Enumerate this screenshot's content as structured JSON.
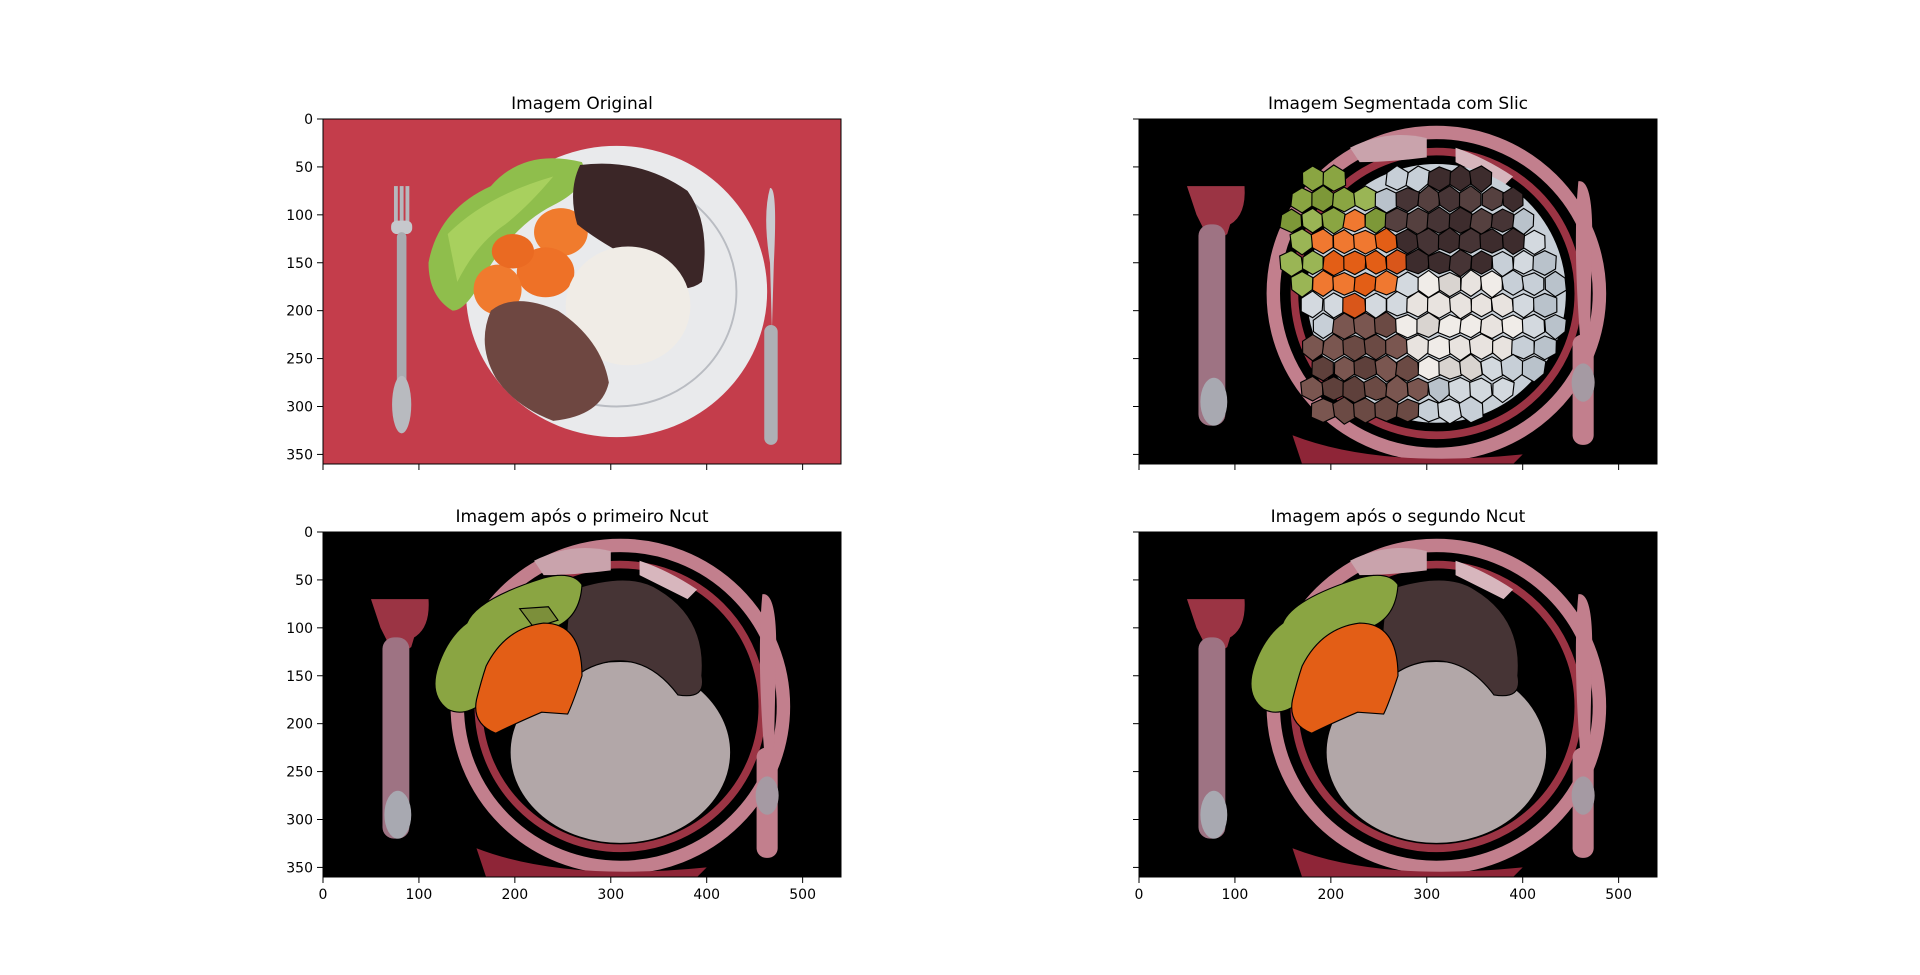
{
  "figure": {
    "subplots": [
      {
        "id": "original",
        "title": "Imagem Original",
        "show_yticklabels": true,
        "show_xticklabels": false,
        "image": "original"
      },
      {
        "id": "slic",
        "title": "Imagem Segmentada com Slic",
        "show_yticklabels": false,
        "show_xticklabels": false,
        "image": "slic"
      },
      {
        "id": "ncut1",
        "title": "Imagem após o primeiro Ncut",
        "show_yticklabels": true,
        "show_xticklabels": true,
        "image": "ncut1"
      },
      {
        "id": "ncut2",
        "title": "Imagem após o segundo Ncut",
        "show_yticklabels": false,
        "show_xticklabels": true,
        "image": "ncut2"
      }
    ],
    "axes": {
      "x_ticks": [
        0,
        100,
        200,
        300,
        400,
        500
      ],
      "y_ticks": [
        0,
        50,
        100,
        150,
        200,
        250,
        300,
        350
      ],
      "xlim": [
        0,
        540
      ],
      "ylim": [
        360,
        0
      ]
    }
  },
  "colors": {
    "tablecloth": "#c43d4b",
    "plate": "#e9eaec",
    "lettuce": "#8aa542",
    "carrot": "#e35e16",
    "beans": "#463435",
    "rice": "#b2a7a8",
    "steak": "#6b4a44",
    "segment_bg": "#000000",
    "pink_region": "#c27f8d",
    "dark_red_region": "#9b3444",
    "mauve_region": "#9e7383"
  }
}
